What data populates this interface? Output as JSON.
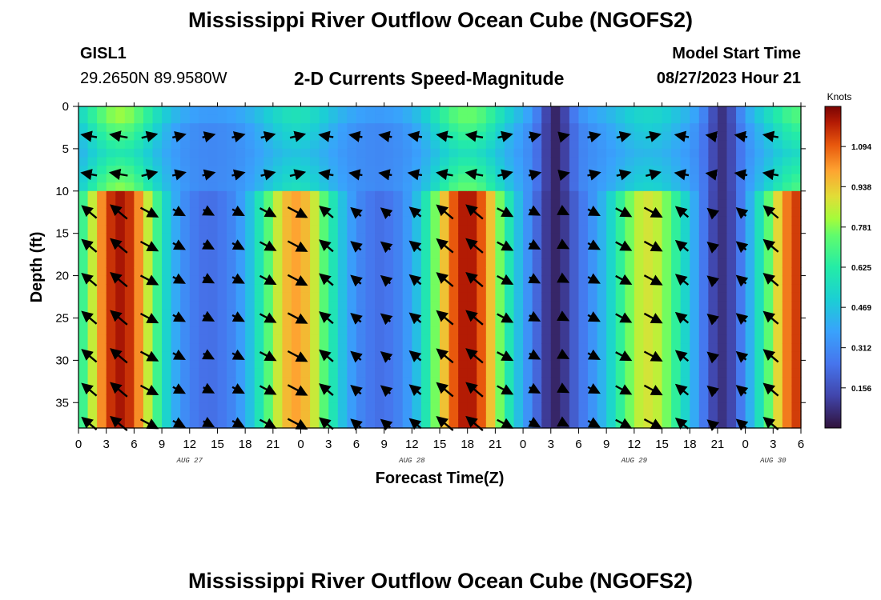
{
  "page": {
    "title": "Mississippi River Outflow Ocean Cube (NGOFS2)",
    "title_repeat": "Mississippi River Outflow Ocean Cube (NGOFS2)",
    "station_id": "GISL1",
    "station_coords": "29.2650N  89.9580W",
    "subtitle": "2-D Currents Speed-Magnitude",
    "model_start_label": "Model Start Time",
    "model_start_value": "08/27/2023 Hour 21"
  },
  "chart_data": {
    "type": "heatmap",
    "title": "2-D Currents Speed-Magnitude",
    "xlabel": "Forecast Time(Z)",
    "ylabel": "Depth (ft)",
    "units": "Knots",
    "x_tick_labels": [
      "0",
      "3",
      "6",
      "9",
      "12",
      "15",
      "18",
      "21",
      "0",
      "3",
      "6",
      "9",
      "12",
      "15",
      "18",
      "21",
      "0",
      "3",
      "6",
      "9",
      "12",
      "15",
      "18",
      "21",
      "0",
      "3",
      "6"
    ],
    "x_range_hours": [
      0,
      78
    ],
    "date_labels": [
      {
        "text": "AUG 27",
        "hour": 12
      },
      {
        "text": "AUG 28",
        "hour": 36
      },
      {
        "text": "AUG 29",
        "hour": 60
      },
      {
        "text": "AUG 30",
        "hour": 75
      }
    ],
    "y_ticks": [
      0,
      5,
      10,
      15,
      20,
      25,
      30,
      35
    ],
    "y_tick_labels": [
      "0",
      "5",
      "10",
      "15",
      "20",
      "25",
      "30",
      "35"
    ],
    "ylim": [
      0,
      38
    ],
    "colorbar_ticks": [
      1.094,
      0.938,
      0.781,
      0.625,
      0.469,
      0.312,
      0.156
    ],
    "colorbar_tick_labels": [
      "1.094",
      "0.938",
      "0.781",
      "0.625",
      "0.469",
      "0.312",
      "0.156"
    ],
    "colorbar_range": [
      0.0,
      1.25
    ],
    "speed_peaks": [
      {
        "hour": 4.5,
        "deep_speed": 1.2,
        "surface_speed": 0.85
      },
      {
        "hour": 23.5,
        "deep_speed": 1.0,
        "surface_speed": 0.6
      },
      {
        "hour": 42.0,
        "deep_speed": 1.2,
        "surface_speed": 0.8
      },
      {
        "hour": 61.5,
        "deep_speed": 0.88,
        "surface_speed": 0.55
      },
      {
        "hour": 78.0,
        "deep_speed": 1.15,
        "surface_speed": 0.75
      }
    ],
    "speed_minima": [
      {
        "hour": 12.5,
        "speed": 0.3
      },
      {
        "hour": 32.0,
        "speed": 0.25
      },
      {
        "hour": 51.5,
        "speed": 0.05
      },
      {
        "hour": 69.5,
        "speed": 0.08
      }
    ],
    "vector_depth_rows_ft": [
      3.5,
      8,
      12.5,
      16.5,
      20.5,
      25,
      29.5,
      33.5,
      37.5
    ]
  }
}
